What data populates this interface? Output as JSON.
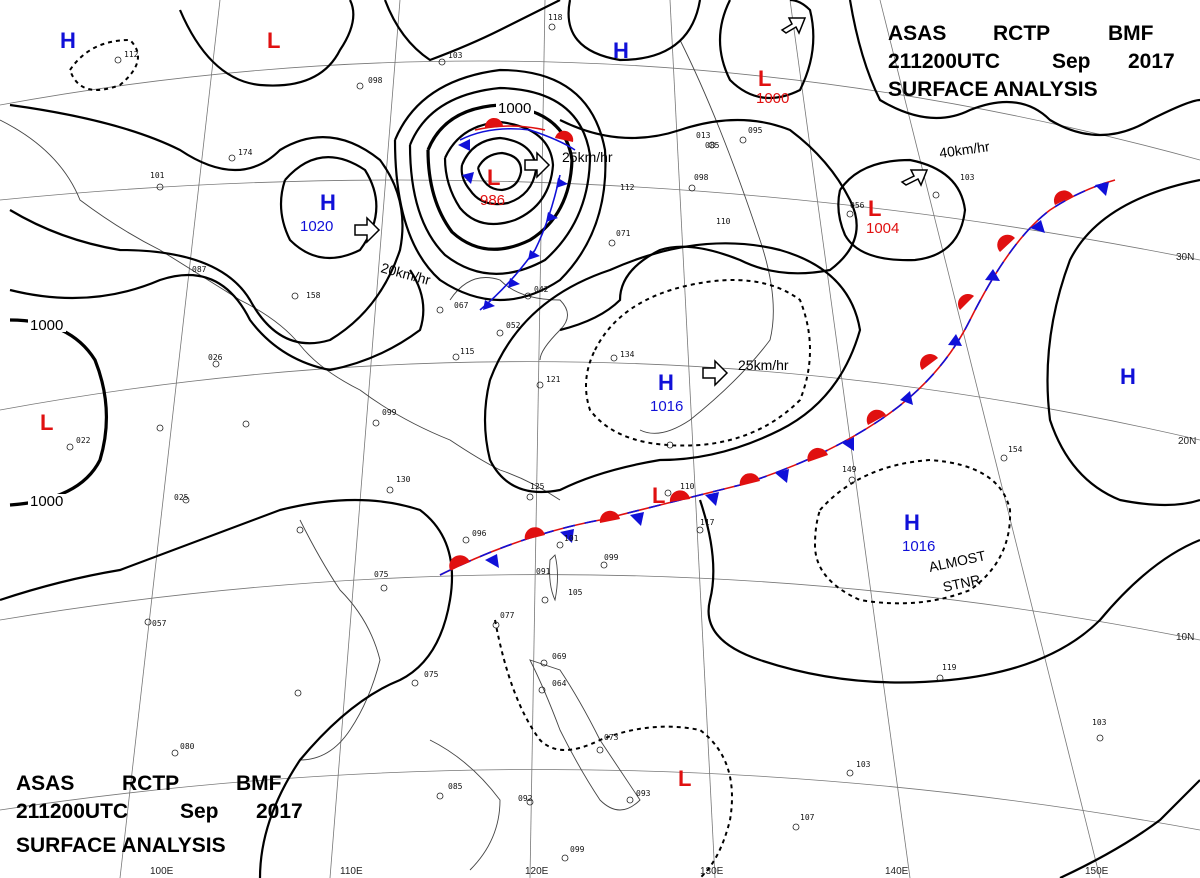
{
  "chart": {
    "header_top": [
      "ASAS",
      "RCTP",
      "BMF"
    ],
    "time_top": "211200UTC",
    "month_top": "Sep",
    "year_top": "2017",
    "analysis_top": "SURFACE ANALYSIS",
    "header_bottom": [
      "ASAS",
      "RCTP",
      "BMF"
    ],
    "time_bottom": "211200UTC",
    "month_bottom": "Sep",
    "year_bottom": "2017",
    "analysis_bottom": "SURFACE ANALYSIS"
  },
  "colors": {
    "high": "#1010d8",
    "low": "#e01010",
    "warm_front": "#e01010",
    "cold_front": "#1010d8"
  },
  "systems": [
    {
      "type": "H",
      "pressure": ""
    },
    {
      "type": "L",
      "pressure": ""
    },
    {
      "type": "L",
      "pressure": "986"
    },
    {
      "type": "H",
      "pressure": ""
    },
    {
      "type": "L",
      "pressure": "1000"
    },
    {
      "type": "H",
      "pressure": "1020"
    },
    {
      "type": "L",
      "pressure": "1004"
    },
    {
      "type": "H",
      "pressure": "1016"
    },
    {
      "type": "H",
      "pressure": ""
    },
    {
      "type": "L",
      "pressure": ""
    },
    {
      "type": "L",
      "pressure": ""
    },
    {
      "type": "H",
      "pressure": "1016"
    },
    {
      "type": "L",
      "pressure": ""
    }
  ],
  "isobar_labels": [
    "1000",
    "1000",
    "1000"
  ],
  "movements": [
    "25km/hr",
    "20km/hr",
    "40km/hr",
    "25km/hr"
  ],
  "note_lines": [
    "ALMOST",
    "STNR"
  ],
  "lat_labels": [
    "30N",
    "20N",
    "10N"
  ],
  "lon_labels": [
    "100E",
    "110E",
    "120E",
    "130E",
    "140E",
    "150E"
  ],
  "stations": [
    "112",
    "174",
    "101",
    "098",
    "103",
    "118",
    "013",
    "085",
    "095",
    "098",
    "056",
    "103",
    "042",
    "067",
    "052",
    "071",
    "134",
    "115",
    "121",
    "099",
    "022",
    "130",
    "125",
    "096",
    "101",
    "091",
    "105",
    "099",
    "117",
    "149",
    "154",
    "075",
    "077",
    "069",
    "064",
    "075",
    "073",
    "092",
    "093",
    "085",
    "080",
    "057",
    "099",
    "107",
    "103",
    "103",
    "119",
    "087",
    "158",
    "110",
    "110",
    "025",
    "112",
    "026"
  ]
}
